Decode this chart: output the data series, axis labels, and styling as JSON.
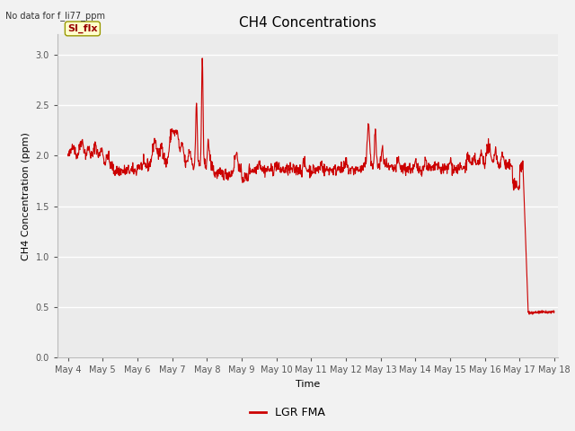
{
  "title": "CH4 Concentrations",
  "xlabel": "Time",
  "ylabel": "CH4 Concentration (ppm)",
  "note": "No data for f_li77_ppm",
  "ylim": [
    0.0,
    3.2
  ],
  "yticks": [
    0.0,
    0.5,
    1.0,
    1.5,
    2.0,
    2.5,
    3.0
  ],
  "x_tick_labels": [
    "May 4",
    "May 5",
    "May 6",
    "May 7",
    "May 8",
    "May 9",
    "May 10",
    "May 11",
    "May 12",
    "May 13",
    "May 14",
    "May 15",
    "May 16",
    "May 17",
    "May 18"
  ],
  "line_color": "#cc0000",
  "line_width": 0.8,
  "legend_label": "LGR FMA",
  "legend_color": "#cc0000",
  "plot_bg_color": "#ebebeb",
  "fig_bg_color": "#f2f2f2",
  "grid_color": "#ffffff",
  "si_flx_label": "SI_flx",
  "si_flx_box_color": "#ffffcc",
  "si_flx_text_color": "#990000",
  "title_fontsize": 11,
  "label_fontsize": 8,
  "tick_fontsize": 7,
  "note_fontsize": 7,
  "legend_fontsize": 9
}
